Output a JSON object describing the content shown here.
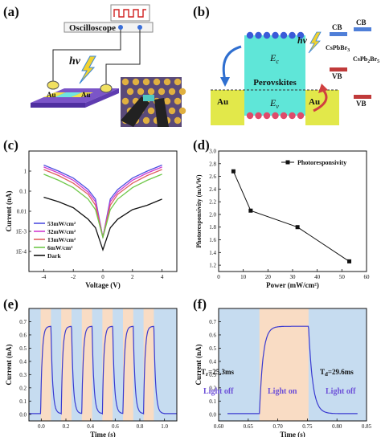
{
  "panels": {
    "a": {
      "label": "(a)",
      "instrument": "Oscilloscope",
      "light_symbol": "hv",
      "electrode_left": "Au",
      "electrode_right": "Au"
    },
    "b": {
      "label": "(b)",
      "light_symbol": "hv",
      "ec": "E",
      "ec_sub": "c",
      "ev": "E",
      "ev_sub": "v",
      "material": "Perovskites",
      "left_contact": "Au",
      "right_contact": "Au",
      "cb_left": "CB",
      "vb_left": "VB",
      "cb_right": "CB",
      "vb_right": "VB",
      "mat1": "CsPbBr",
      "mat1_sub": "3",
      "mat2": "CsPb",
      "mat2_sub1": "2",
      "mat2_mid": "Br",
      "mat2_sub2": "5"
    },
    "c": {
      "label": "(c)"
    },
    "d": {
      "label": "(d)"
    },
    "e": {
      "label": "(e)"
    },
    "f": {
      "label": "(f)",
      "tr_label": "T",
      "tr_sub": "r",
      "tr_value": "=25.3ms",
      "td_label": "T",
      "td_sub": "d",
      "td_value": "=29.6ms",
      "light_off_left": "Light off",
      "light_on": "Light on",
      "light_off_right": "Light off"
    }
  },
  "chart_data": [
    {
      "panel": "c",
      "type": "line",
      "xlabel": "Voltage (V)",
      "ylabel": "Current (nA)",
      "xlim": [
        -5,
        5
      ],
      "ylim": [
        1e-05,
        10
      ],
      "log_y": true,
      "x_ticks": [
        "-4",
        "-2",
        "0",
        "2",
        "4"
      ],
      "y_ticks": [
        "1E-4",
        "1E-3",
        "0.01",
        "0.1",
        "1"
      ],
      "legend_position": "bottom-left",
      "series": [
        {
          "name": "53mW/cm²",
          "color": "#4f4fe0",
          "x": [
            -4,
            -3,
            -2,
            -1,
            -0.5,
            0,
            0.5,
            1,
            2,
            3,
            4
          ],
          "y": [
            2.0,
            1.0,
            0.45,
            0.12,
            0.04,
            0.0005,
            0.04,
            0.12,
            0.45,
            1.0,
            2.0
          ]
        },
        {
          "name": "32mW/cm²",
          "color": "#d03cd0",
          "x": [
            -4,
            -3,
            -2,
            -1,
            -0.5,
            0,
            0.5,
            1,
            2,
            3,
            4
          ],
          "y": [
            1.6,
            0.8,
            0.35,
            0.09,
            0.03,
            0.0005,
            0.03,
            0.09,
            0.35,
            0.8,
            1.6
          ]
        },
        {
          "name": "13mW/cm²",
          "color": "#e06060",
          "x": [
            -4,
            -3,
            -2,
            -1,
            -0.5,
            0,
            0.5,
            1,
            2,
            3,
            4
          ],
          "y": [
            1.2,
            0.6,
            0.25,
            0.07,
            0.02,
            0.0005,
            0.02,
            0.07,
            0.25,
            0.6,
            1.2
          ]
        },
        {
          "name": "6mW/cm²",
          "color": "#70c84a",
          "x": [
            -4,
            -3,
            -2,
            -1,
            -0.5,
            0,
            0.5,
            1,
            2,
            3,
            4
          ],
          "y": [
            0.7,
            0.35,
            0.15,
            0.04,
            0.012,
            0.0005,
            0.012,
            0.04,
            0.15,
            0.35,
            0.7
          ]
        },
        {
          "name": "Dark",
          "color": "#111111",
          "x": [
            -4,
            -3,
            -2,
            -1,
            -0.5,
            0,
            0.5,
            1,
            2,
            3,
            4
          ],
          "y": [
            0.05,
            0.03,
            0.015,
            0.004,
            0.0015,
            0.00012,
            0.0015,
            0.004,
            0.012,
            0.02,
            0.04
          ]
        }
      ]
    },
    {
      "panel": "d",
      "type": "line",
      "xlabel": "Power (mW/cm²)",
      "ylabel": "Photoresponsivity (mA/W)",
      "xlim": [
        0,
        60
      ],
      "ylim": [
        1.1,
        3.0
      ],
      "x_ticks": [
        "0",
        "10",
        "20",
        "30",
        "40",
        "50",
        "60"
      ],
      "y_ticks": [
        "1.2",
        "1.4",
        "1.6",
        "1.8",
        "2.0",
        "2.2",
        "2.4",
        "2.6",
        "2.8",
        "3.0"
      ],
      "legend_position": "top-right",
      "series": [
        {
          "name": "Photoresponsivity",
          "color": "#111111",
          "x": [
            6,
            13,
            32,
            53
          ],
          "y": [
            2.68,
            2.06,
            1.8,
            1.26
          ]
        }
      ]
    },
    {
      "panel": "e",
      "type": "line",
      "xlabel": "Time (s)",
      "ylabel": "Current (nA)",
      "xlim": [
        -0.1,
        1.1
      ],
      "ylim": [
        -0.05,
        0.8
      ],
      "x_ticks": [
        "0.0",
        "0.2",
        "0.4",
        "0.6",
        "0.8",
        "1.0"
      ],
      "y_ticks": [
        "0.0",
        "0.1",
        "0.2",
        "0.3",
        "0.4",
        "0.5",
        "0.6",
        "0.7"
      ],
      "period": 0.167,
      "on_fraction": 0.5,
      "cycles": 6,
      "on_start": -0.005,
      "i_on": 0.665,
      "i_off": 0.005,
      "on_color": "#f9dcc4",
      "off_color": "#c6dcf0"
    },
    {
      "panel": "f",
      "type": "line",
      "xlabel": "Time (s)",
      "ylabel": "Current (nA)",
      "xlim": [
        0.6,
        0.85
      ],
      "ylim": [
        -0.05,
        0.8
      ],
      "x_ticks": [
        "0.60",
        "0.65",
        "0.70",
        "0.75",
        "0.80",
        "0.85"
      ],
      "y_ticks": [
        "0.0",
        "0.1",
        "0.2",
        "0.3",
        "0.4",
        "0.5",
        "0.6",
        "0.7"
      ],
      "on_start": 0.669,
      "on_end": 0.752,
      "i_on": 0.665,
      "i_off": 0.005,
      "on_color": "#f9dcc4",
      "off_color": "#c6dcf0"
    }
  ]
}
